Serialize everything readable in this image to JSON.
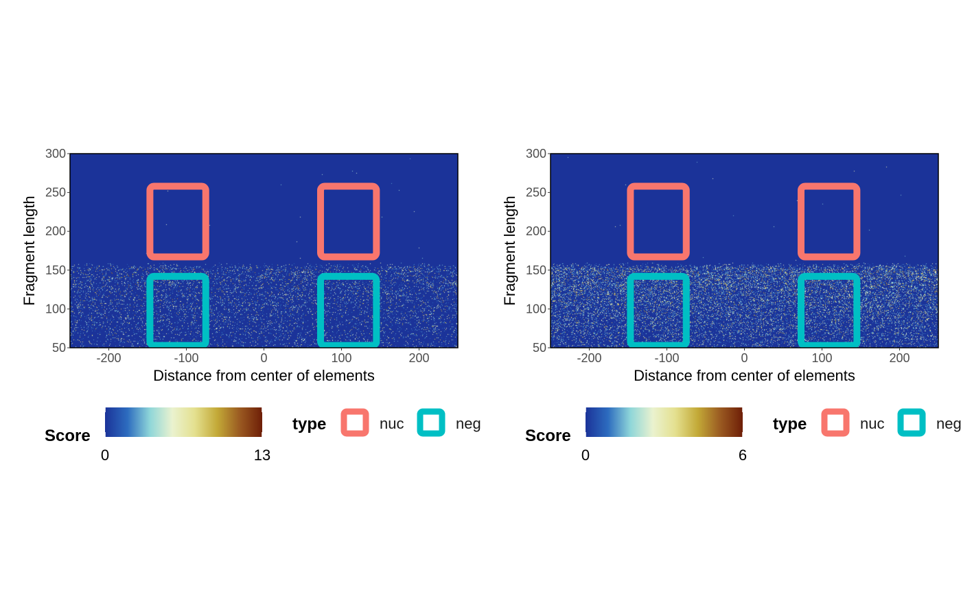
{
  "chart_data": [
    {
      "type": "heatmap",
      "xlabel": "Distance from center of elements",
      "ylabel": "Fragment length",
      "xlim": [
        -250,
        250
      ],
      "ylim": [
        50,
        300
      ],
      "xticks": [
        -200,
        -100,
        0,
        100,
        200
      ],
      "yticks": [
        50,
        100,
        150,
        200,
        250,
        300
      ],
      "signal_band": {
        "y_min": 50,
        "y_max": 160,
        "density": 0.26,
        "intensity_shape": "upper_band_strongest"
      },
      "colorbar": {
        "title": "Score",
        "min": 0,
        "max": 13,
        "min_label": "0",
        "max_label": "13",
        "colors": [
          "#1b3399",
          "#2d6cbf",
          "#8fd6d9",
          "#eaf2cf",
          "#e4e08f",
          "#c3a937",
          "#9a5a21",
          "#6e1e07"
        ]
      },
      "regions": [
        {
          "type": "nuc",
          "x0": -147,
          "x1": -75,
          "y0": 167,
          "y1": 258
        },
        {
          "type": "nuc",
          "x0": 73,
          "x1": 145,
          "y0": 167,
          "y1": 258
        },
        {
          "type": "neg",
          "x0": -147,
          "x1": -75,
          "y0": 53,
          "y1": 142
        },
        {
          "type": "neg",
          "x0": 73,
          "x1": 145,
          "y0": 53,
          "y1": 142
        }
      ],
      "legend": {
        "title": "type",
        "entries": [
          {
            "label": "nuc",
            "color": "#f8766d"
          },
          {
            "label": "neg",
            "color": "#00bfc4"
          }
        ]
      }
    },
    {
      "type": "heatmap",
      "xlabel": "Distance from center of elements",
      "ylabel": "Fragment length",
      "xlim": [
        -250,
        250
      ],
      "ylim": [
        50,
        300
      ],
      "xticks": [
        -200,
        -100,
        0,
        100,
        200
      ],
      "yticks": [
        50,
        100,
        150,
        200,
        250,
        300
      ],
      "signal_band": {
        "y_min": 50,
        "y_max": 160,
        "density": 0.55,
        "intensity_shape": "upper_band_strongest"
      },
      "colorbar": {
        "title": "Score",
        "min": 0,
        "max": 6,
        "min_label": "0",
        "max_label": "6",
        "colors": [
          "#1b3399",
          "#2d6cbf",
          "#8fd6d9",
          "#eaf2cf",
          "#e4e08f",
          "#c3a937",
          "#9a5a21",
          "#6e1e07"
        ]
      },
      "regions": [
        {
          "type": "nuc",
          "x0": -147,
          "x1": -75,
          "y0": 167,
          "y1": 258
        },
        {
          "type": "nuc",
          "x0": 73,
          "x1": 145,
          "y0": 167,
          "y1": 258
        },
        {
          "type": "neg",
          "x0": -147,
          "x1": -75,
          "y0": 53,
          "y1": 142
        },
        {
          "type": "neg",
          "x0": 73,
          "x1": 145,
          "y0": 53,
          "y1": 142
        }
      ],
      "legend": {
        "title": "type",
        "entries": [
          {
            "label": "nuc",
            "color": "#f8766d"
          },
          {
            "label": "neg",
            "color": "#00bfc4"
          }
        ]
      }
    }
  ],
  "colors": {
    "background": "#1b3399",
    "panel_border": "#000000",
    "tick_text": "#4d4d4d"
  }
}
